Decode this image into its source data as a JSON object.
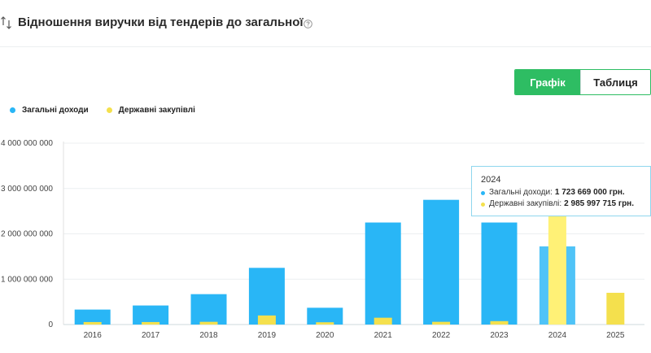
{
  "header": {
    "title": "Відношення виручки від тендерів до загальної",
    "sort_icon": "sort-arrows-icon",
    "help_icon": "question-circle-icon"
  },
  "view_toggle": {
    "chart_label": "Графік",
    "table_label": "Таблиця",
    "selected": "Графік"
  },
  "colors": {
    "total": "#29b6f6",
    "total_hover": "#4fc3f7",
    "procurement": "#f4e04d",
    "procurement_hover": "#fff176",
    "accent": "#2ebd63"
  },
  "chart_data": {
    "type": "bar",
    "categories": [
      "2016",
      "2017",
      "2018",
      "2019",
      "2020",
      "2021",
      "2022",
      "2023",
      "2024",
      "2025"
    ],
    "series": [
      {
        "name": "Загальні доходи",
        "values": [
          330000000,
          420000000,
          670000000,
          1250000000,
          370000000,
          2250000000,
          2750000000,
          2250000000,
          1723669000,
          0
        ]
      },
      {
        "name": "Державні закупівлі",
        "values": [
          55000000,
          55000000,
          60000000,
          200000000,
          50000000,
          150000000,
          60000000,
          75000000,
          2985997715,
          700000000
        ]
      }
    ],
    "ylim": [
      0,
      4000000000
    ],
    "yticks": [
      0,
      1000000000,
      2000000000,
      3000000000,
      4000000000
    ],
    "ytick_labels": [
      "0",
      "1 000 000 000",
      "2 000 000 000",
      "3 000 000 000",
      "4 000 000 000"
    ],
    "grid": true,
    "legend_position": "top-left",
    "hovered_category": "2024"
  },
  "tooltip": {
    "year": "2024",
    "total_label": "Загальні доходи:",
    "total_value": "1 723 669 000 грн.",
    "procurement_label": "Державні закупівлі:",
    "procurement_value": "2 985 997 715 грн."
  }
}
